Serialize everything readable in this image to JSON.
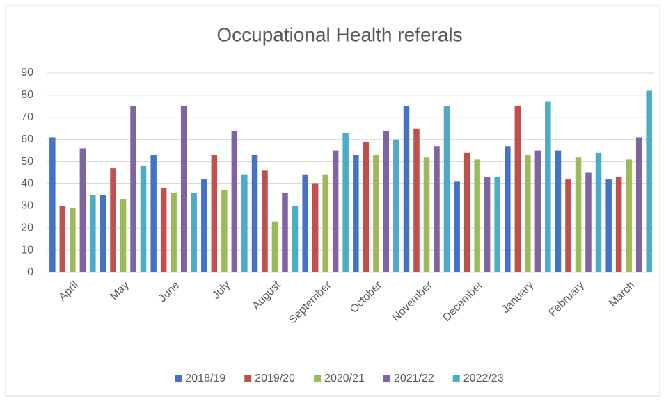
{
  "chart_data": {
    "type": "bar",
    "title": "Occupational Health referals",
    "categories": [
      "April",
      "May",
      "June",
      "July",
      "August",
      "September",
      "October",
      "November",
      "December",
      "January",
      "February",
      "March"
    ],
    "series": [
      {
        "name": "2018/19",
        "color": "#4472c4",
        "values": [
          61,
          35,
          53,
          42,
          53,
          44,
          53,
          75,
          41,
          57,
          55,
          42
        ]
      },
      {
        "name": "2019/20",
        "color": "#c0504d",
        "values": [
          30,
          47,
          38,
          53,
          46,
          40,
          59,
          65,
          54,
          75,
          42,
          43
        ]
      },
      {
        "name": "2020/21",
        "color": "#9bbb59",
        "values": [
          29,
          33,
          36,
          37,
          23,
          44,
          53,
          52,
          51,
          53,
          52,
          51
        ]
      },
      {
        "name": "2021/22",
        "color": "#8064a2",
        "values": [
          56,
          75,
          75,
          64,
          36,
          55,
          64,
          57,
          43,
          55,
          45,
          61
        ]
      },
      {
        "name": "2022/23",
        "color": "#4bacc6",
        "values": [
          35,
          48,
          36,
          44,
          30,
          63,
          60,
          75,
          43,
          77,
          54,
          82
        ]
      }
    ],
    "ylim": [
      0,
      90
    ],
    "yticks": [
      0,
      10,
      20,
      30,
      40,
      50,
      60,
      70,
      80,
      90
    ],
    "grid": true,
    "legend": "bottom"
  }
}
